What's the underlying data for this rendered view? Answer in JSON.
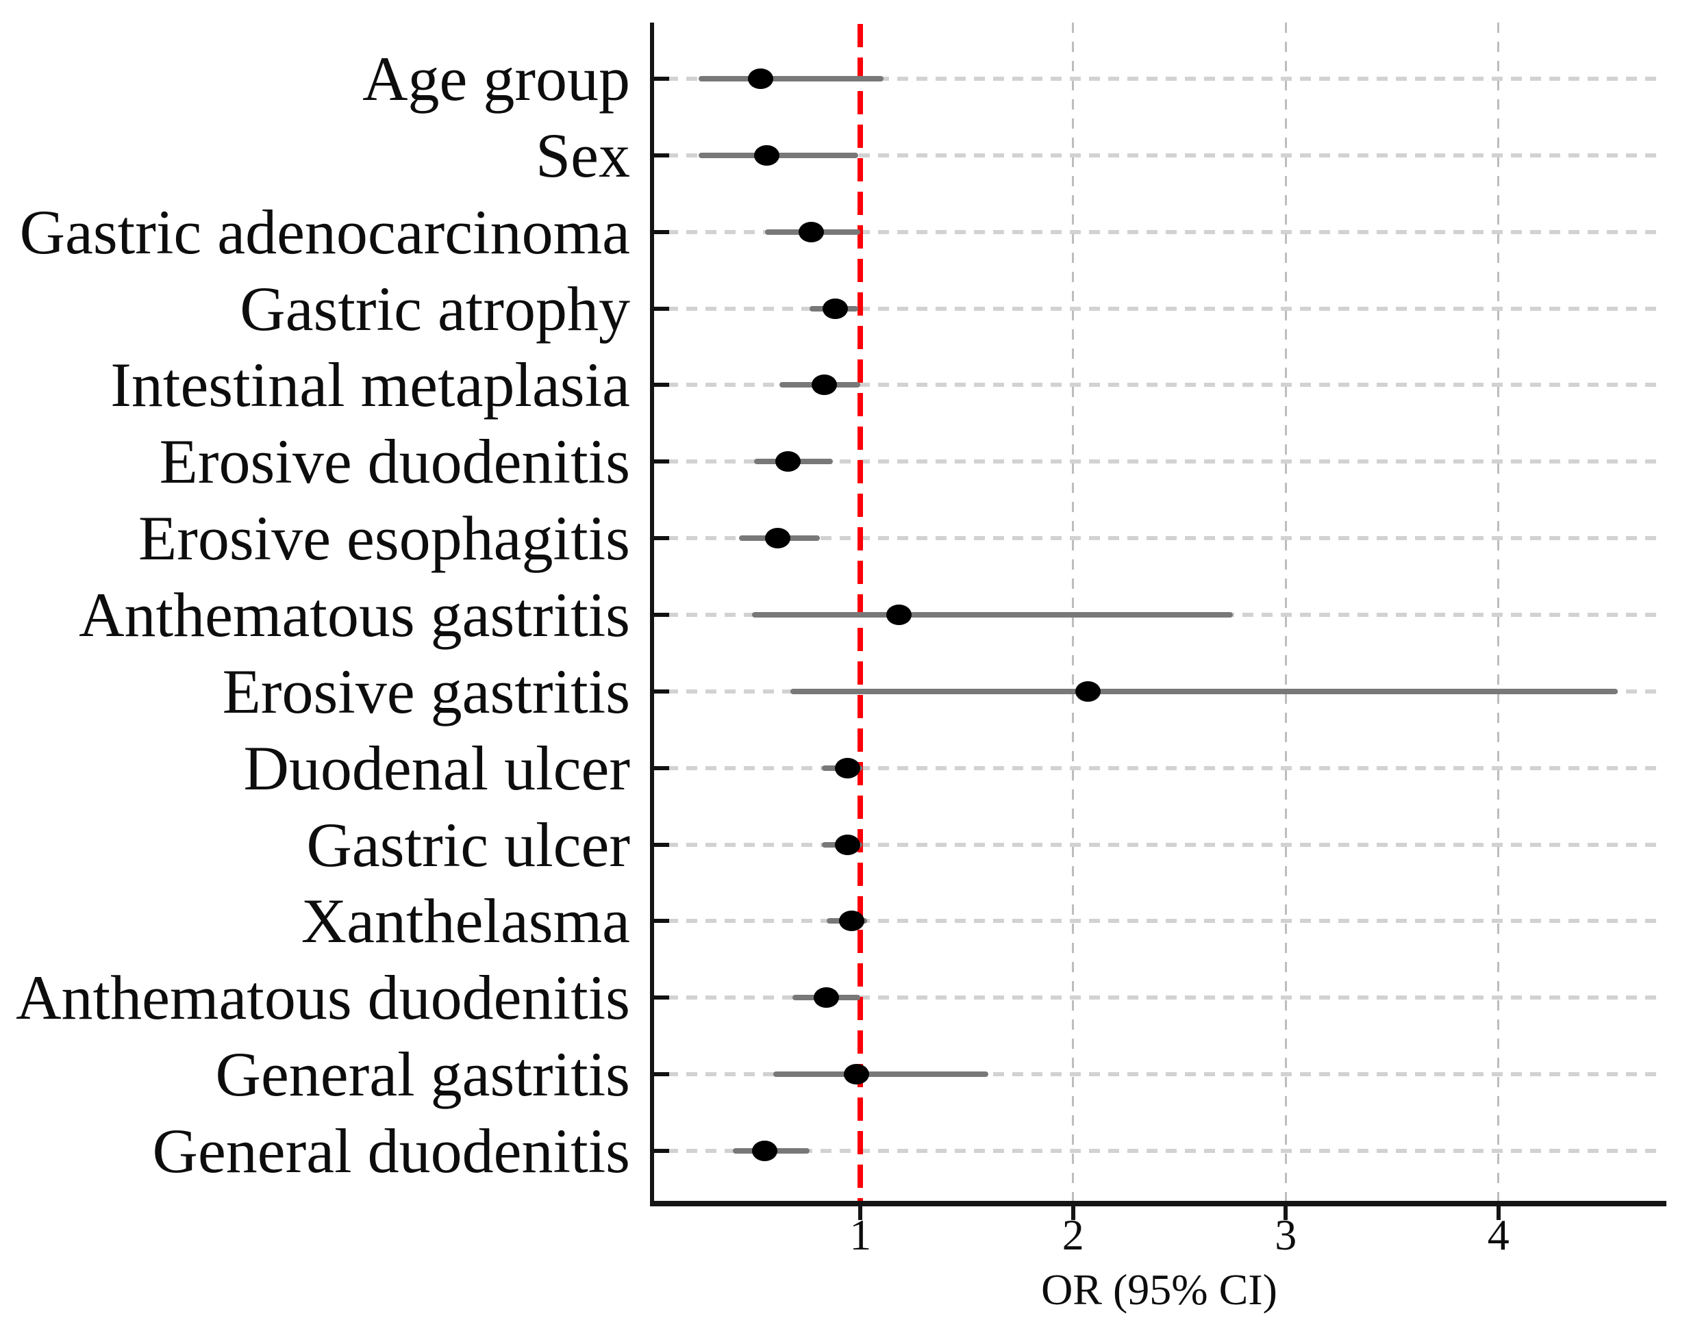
{
  "figure": {
    "background": "#ffffff",
    "has_title": false,
    "has_legend": false
  },
  "colors": {
    "axis": "#151515",
    "ci_bar": "#787878",
    "point": "#000000",
    "reference_line": "#fb0006",
    "h_gridline": "#d2d2d2",
    "v_gridline": "#bdbdbd",
    "text": "#0d0d0d"
  },
  "chart_data": {
    "type": "scatter",
    "subtype": "forest-plot-odds-ratios",
    "title": "",
    "xlabel": "OR (95% CI)",
    "ylabel": "",
    "xlim": [
      0.02,
      4.79
    ],
    "x_ticks": [
      1,
      2,
      3,
      4
    ],
    "x_tick_labels": [
      "1",
      "2",
      "3",
      "4"
    ],
    "x_gridlines": [
      2,
      3,
      4
    ],
    "reference_line": {
      "x": 1,
      "color": "#fb0006",
      "style": "dashed"
    },
    "grid": "dashed horizontal line per category; dashed vertical lines at x=2,3,4",
    "legend_position": "none",
    "categories": [
      "Age group",
      "Sex",
      "Gastric adenocarcinoma",
      "Gastric atrophy",
      "Intestinal metaplasia",
      "Erosive duodenitis",
      "Erosive esophagitis",
      "Anthematous gastritis",
      "Erosive gastritis",
      "Duodenal ulcer",
      "Gastric ulcer",
      "Xanthelasma",
      "Anthematous duodenitis",
      "General gastritis",
      "General duodenitis"
    ],
    "series": [
      {
        "name": "OR",
        "values": [
          0.53,
          0.56,
          0.77,
          0.88,
          0.83,
          0.66,
          0.61,
          1.18,
          2.07,
          0.94,
          0.94,
          0.96,
          0.84,
          0.98,
          0.55
        ]
      },
      {
        "name": "CI_lower",
        "values": [
          0.24,
          0.24,
          0.55,
          0.76,
          0.62,
          0.5,
          0.43,
          0.49,
          0.67,
          0.82,
          0.82,
          0.84,
          0.68,
          0.59,
          0.4
        ]
      },
      {
        "name": "CI_upper",
        "values": [
          1.11,
          0.99,
          1.0,
          0.99,
          1.0,
          0.87,
          0.81,
          2.75,
          4.56,
          1.01,
          1.01,
          1.03,
          1.0,
          1.6,
          0.76
        ]
      }
    ]
  }
}
